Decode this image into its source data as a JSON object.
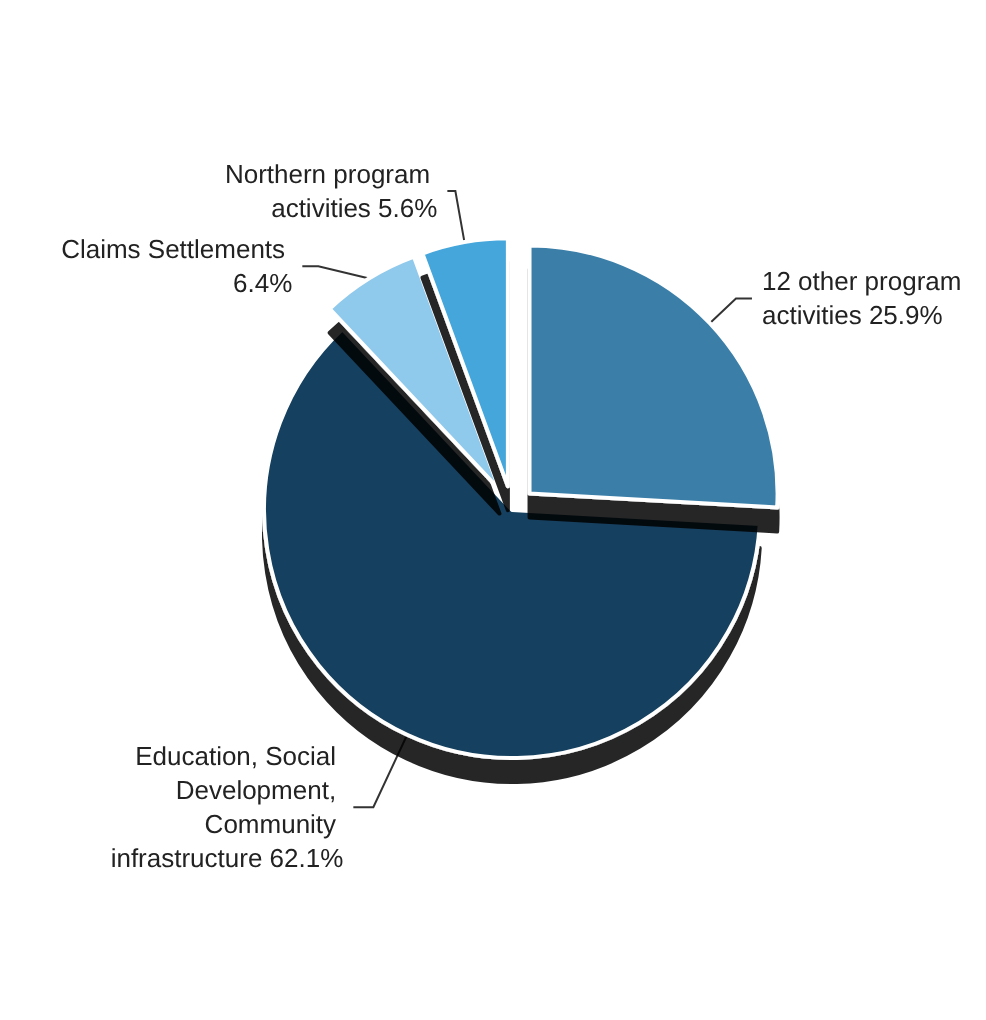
{
  "chart_data": {
    "type": "pie",
    "categories": [
      "12 other program activities",
      "Education, Social Development, Community infrastructure",
      "Claims Settlements",
      "Northern program activities"
    ],
    "values": [
      25.9,
      62.1,
      6.4,
      5.6
    ],
    "value_labels": [
      "25.9%",
      "62.1%",
      "6.4%",
      "5.6%"
    ],
    "colors": [
      "#3a7fa9",
      "#14405e",
      "#8fc9ec",
      "#45a6dc"
    ]
  }
}
